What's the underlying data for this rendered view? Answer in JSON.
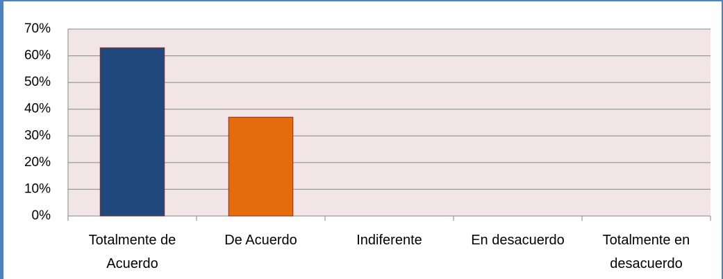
{
  "chart_data": {
    "type": "bar",
    "categories": [
      "Totalmente de Acuerdo",
      "De Acuerdo",
      "Indiferente",
      "En desacuerdo",
      "Totalmente en desacuerdo"
    ],
    "values": [
      63,
      37,
      0,
      0,
      0
    ],
    "colors": [
      "#1f497d",
      "#e46c0a",
      "#4f81bd",
      "#4f81bd",
      "#4f81bd"
    ],
    "ylim": [
      0,
      70
    ],
    "yticks": [
      {
        "value": 0,
        "label": "0%"
      },
      {
        "value": 10,
        "label": "10%"
      },
      {
        "value": 20,
        "label": "20%"
      },
      {
        "value": 30,
        "label": "30%"
      },
      {
        "value": 40,
        "label": "40%"
      },
      {
        "value": 50,
        "label": "50%"
      },
      {
        "value": 60,
        "label": "60%"
      },
      {
        "value": 70,
        "label": "70%"
      }
    ],
    "grid": true
  }
}
